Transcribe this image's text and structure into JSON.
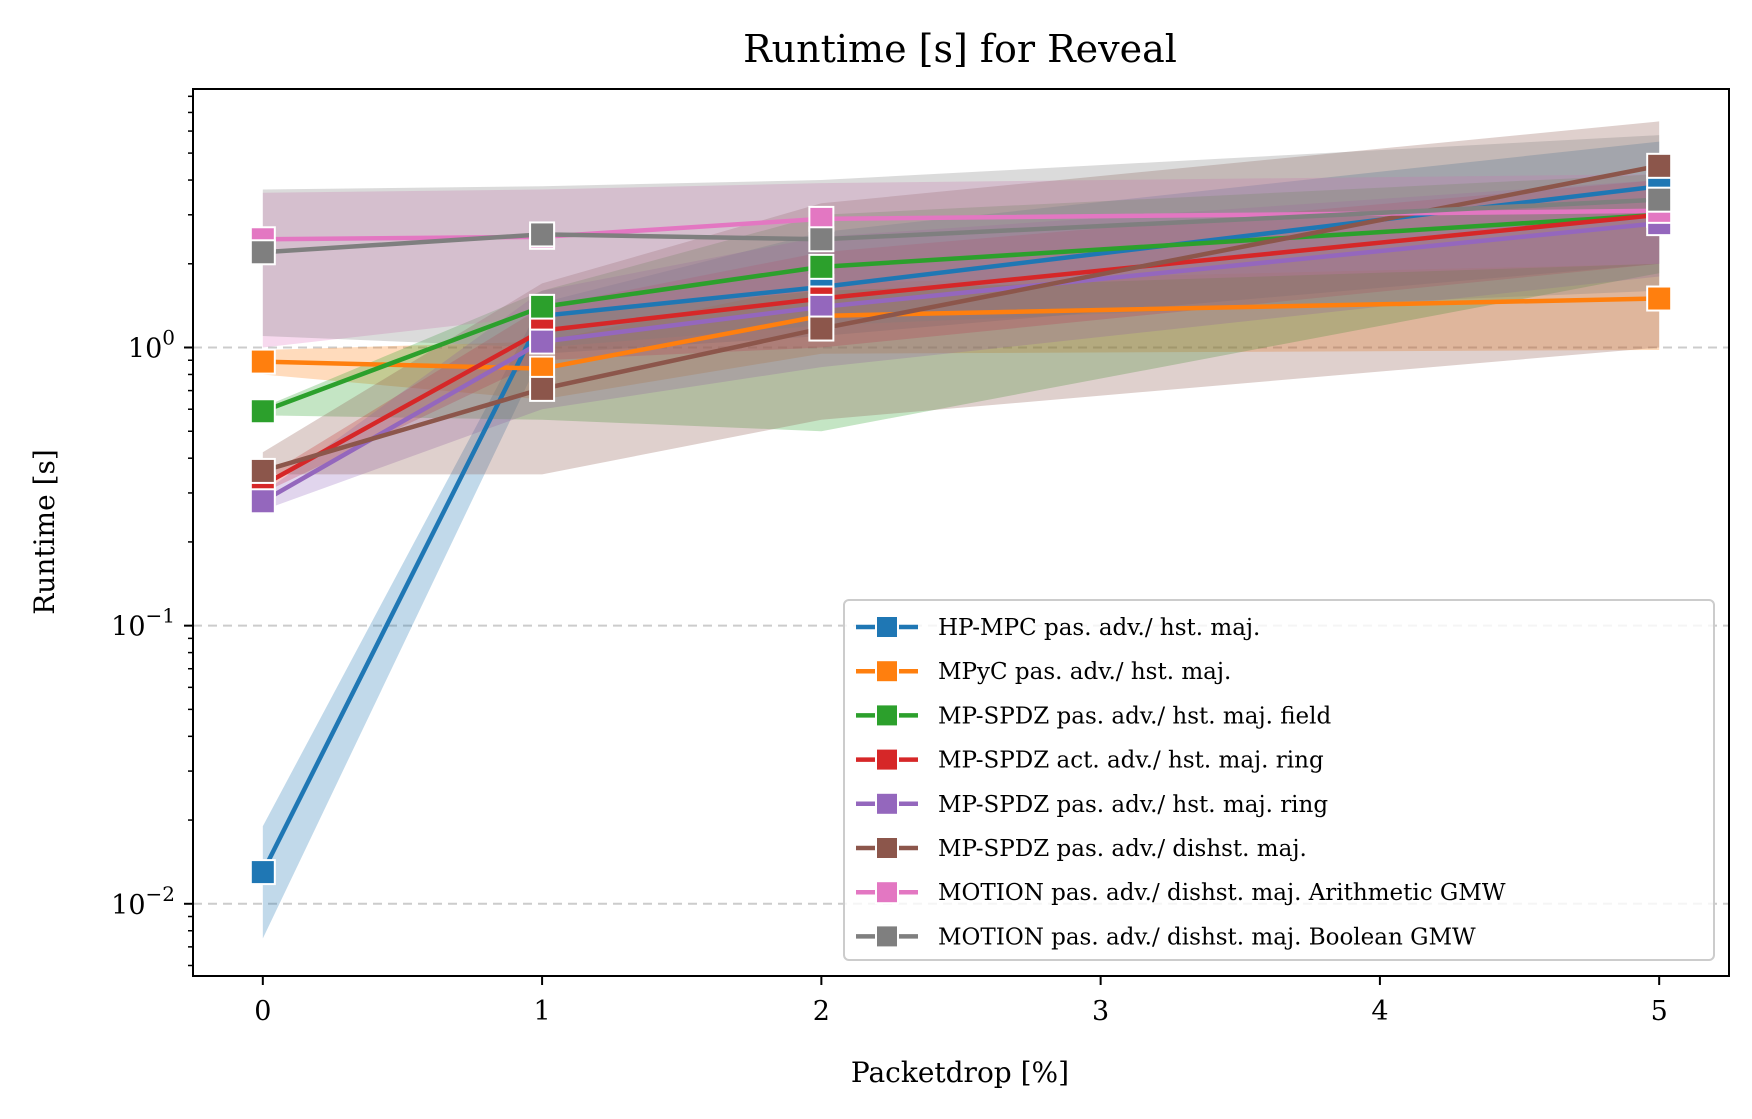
{
  "chart_data": {
    "type": "line",
    "title": "Runtime [s] for Reveal",
    "xlabel": "Packetdrop [%]",
    "ylabel": "Runtime [s]",
    "x": [
      0,
      1,
      2,
      5
    ],
    "xticks": [
      "0",
      "1",
      "2",
      "3",
      "4",
      "5"
    ],
    "xlim": [
      -0.25,
      5.25
    ],
    "ylim": [
      0.0055,
      8.5
    ],
    "yscale": "log",
    "yticks": [
      {
        "base": "10",
        "exp": "0"
      },
      {
        "base": "10",
        "exp": "−1"
      },
      {
        "base": "10",
        "exp": "−2"
      }
    ],
    "grid": "horizontal dashed at major y ticks",
    "legend_position": "lower-right",
    "series": [
      {
        "name": "HP-MPC pas. adv./ hst. maj.",
        "color": "#1f77b4",
        "values": [
          0.013,
          1.3,
          1.65,
          3.8
        ],
        "band_low": [
          0.0075,
          0.95,
          1.1,
          2.0
        ],
        "band_high": [
          0.019,
          1.45,
          2.6,
          5.5
        ]
      },
      {
        "name": "MPyC pas. adv./ hst. maj.",
        "color": "#ff7f0e",
        "values": [
          0.89,
          0.84,
          1.3,
          1.5
        ],
        "band_low": [
          0.8,
          0.65,
          0.95,
          0.98
        ],
        "band_high": [
          0.98,
          1.05,
          1.7,
          2.0
        ]
      },
      {
        "name": "MP-SPDZ pas. adv./ hst. maj. field",
        "color": "#2ca02c",
        "values": [
          0.59,
          1.4,
          1.95,
          3.0
        ],
        "band_low": [
          0.57,
          0.55,
          0.5,
          1.85
        ],
        "band_high": [
          0.61,
          1.6,
          3.0,
          4.2
        ]
      },
      {
        "name": "MP-SPDZ act. adv./ hst. maj. ring",
        "color": "#d62728",
        "values": [
          0.32,
          1.15,
          1.5,
          3.0
        ],
        "band_low": [
          0.3,
          0.9,
          1.0,
          2.0
        ],
        "band_high": [
          0.34,
          1.4,
          2.2,
          4.0
        ]
      },
      {
        "name": "MP-SPDZ pas. adv./ hst. maj. ring",
        "color": "#9467bd",
        "values": [
          0.28,
          1.05,
          1.4,
          2.8
        ],
        "band_low": [
          0.26,
          0.6,
          0.85,
          1.8
        ],
        "band_high": [
          0.3,
          1.6,
          2.5,
          4.0
        ]
      },
      {
        "name": "MP-SPDZ pas. adv./ dishst. maj.",
        "color": "#8c564b",
        "values": [
          0.36,
          0.71,
          1.17,
          4.5
        ],
        "band_low": [
          0.35,
          0.35,
          0.55,
          1.0
        ],
        "band_high": [
          0.42,
          1.7,
          3.3,
          6.5
        ]
      },
      {
        "name": "MOTION pas. adv./ dishst. maj. Arithmetic GMW",
        "color": "#e377c2",
        "values": [
          2.45,
          2.5,
          2.9,
          3.1
        ],
        "band_low": [
          1.0,
          1.3,
          1.6,
          2.0
        ],
        "band_high": [
          3.6,
          3.7,
          3.9,
          4.2
        ]
      },
      {
        "name": "MOTION pas. adv./ dishst. maj. Boolean GMW",
        "color": "#7f7f7f",
        "values": [
          2.2,
          2.55,
          2.45,
          3.4
        ],
        "band_low": [
          1.1,
          1.0,
          1.2,
          1.6
        ],
        "band_high": [
          3.7,
          3.8,
          4.0,
          5.8
        ]
      }
    ]
  }
}
